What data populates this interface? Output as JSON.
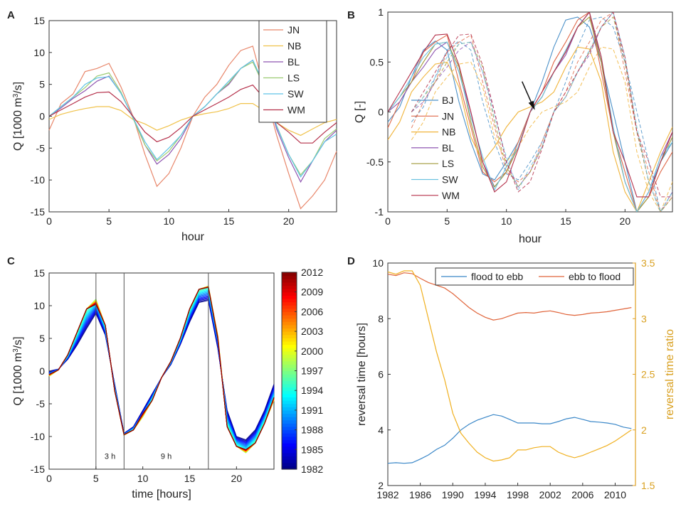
{
  "chart_data": [
    {
      "panel": "A",
      "type": "line",
      "title": "",
      "xlabel": "hour",
      "ylabel": "Q [1000 m³/s]",
      "ylabel_parts": [
        "Q [1000 m",
        "3",
        "/s]"
      ],
      "xlim": [
        0,
        24
      ],
      "ylim": [
        -15,
        15
      ],
      "xticks": [
        0,
        5,
        10,
        15,
        20
      ],
      "yticks": [
        -15,
        -10,
        -5,
        0,
        5,
        10,
        15
      ],
      "legend_position": "top-right",
      "x": [
        0,
        1,
        2,
        3,
        4,
        5,
        6,
        7,
        8,
        9,
        10,
        11,
        12,
        13,
        14,
        15,
        16,
        17,
        18,
        19,
        20,
        21,
        22,
        23,
        24
      ],
      "series": [
        {
          "name": "JN",
          "color": "#e8866a",
          "values": [
            -2.2,
            2,
            3.5,
            7,
            7.5,
            8.3,
            4.6,
            0,
            -6,
            -11,
            -9,
            -5,
            0,
            3,
            5,
            8,
            10.3,
            11,
            4,
            -3,
            -9,
            -14.5,
            -12.5,
            -10,
            -5.5
          ]
        },
        {
          "name": "NB",
          "color": "#f0c24a",
          "values": [
            -0.5,
            0.3,
            0.8,
            1.2,
            1.5,
            1.5,
            0.9,
            -0.5,
            -1.2,
            -2.2,
            -1.5,
            -0.6,
            0,
            0.4,
            0.7,
            1.2,
            2,
            2,
            0.8,
            -1,
            -2.2,
            -3,
            -2,
            -1,
            -0.5
          ]
        },
        {
          "name": "BL",
          "color": "#8e55b0",
          "values": [
            0,
            1.3,
            2.8,
            4,
            5.5,
            6.3,
            3.6,
            -0.1,
            -4.5,
            -7.5,
            -6,
            -3.5,
            0,
            1.5,
            3.5,
            5,
            7.5,
            8.8,
            4.5,
            -2,
            -6.5,
            -10.3,
            -7,
            -4,
            -2.2
          ]
        },
        {
          "name": "LS",
          "color": "#9bcb72",
          "values": [
            0,
            1.5,
            3,
            4.5,
            6.3,
            6.8,
            3.8,
            -0.3,
            -4.5,
            -7,
            -5.5,
            -3,
            0,
            1.5,
            3.5,
            5.2,
            7.5,
            8.5,
            4.5,
            -1.5,
            -6,
            -9.2,
            -7,
            -3.5,
            -2
          ]
        },
        {
          "name": "SW",
          "color": "#5dc3e6",
          "values": [
            0,
            1.5,
            3,
            5,
            6,
            6.2,
            3.6,
            -0.2,
            -4,
            -6.8,
            -5,
            -3,
            0,
            1.5,
            3.5,
            5.5,
            7.5,
            8.8,
            4.8,
            -1.6,
            -6,
            -9.5,
            -7,
            -4,
            -2.8
          ]
        },
        {
          "name": "WM",
          "color": "#b5304a",
          "values": [
            0,
            1,
            2,
            3,
            3.7,
            3.8,
            2.3,
            0,
            -2.5,
            -4,
            -3.3,
            -1.8,
            0,
            1,
            2,
            3,
            4.2,
            4.9,
            2.7,
            -1,
            -2.5,
            -4.2,
            -4.2,
            -2.5,
            -1
          ]
        }
      ]
    },
    {
      "panel": "B",
      "type": "line",
      "title": "",
      "xlabel": "hour",
      "ylabel": "Q [-]",
      "xlim": [
        0,
        24
      ],
      "ylim": [
        -1,
        1
      ],
      "xticks": [
        0,
        5,
        10,
        15,
        20
      ],
      "yticks": [
        -1,
        -0.5,
        0,
        0.5,
        1
      ],
      "yticklabels": [
        "-1",
        "-0.5",
        "0",
        "0.5",
        "1"
      ],
      "legend_position": "bottom-left",
      "annotation": "arrow pointing at the crossing of all curves near hour 12.5",
      "x": [
        0,
        1,
        2,
        3,
        4,
        5,
        6,
        7,
        8,
        9,
        10,
        11,
        12,
        13,
        14,
        15,
        16,
        17,
        18,
        19,
        20,
        21,
        22,
        23,
        24
      ],
      "series": [
        {
          "name": "BJ",
          "color": "#4a90c8",
          "values": [
            -0.1,
            0.05,
            0.35,
            0.62,
            0.71,
            0.62,
            0.1,
            -0.3,
            -0.62,
            -0.68,
            -0.5,
            -0.3,
            0,
            0.3,
            0.65,
            0.92,
            0.95,
            0.85,
            0.5,
            0,
            -0.5,
            -1,
            -0.8,
            -0.5,
            -0.3
          ]
        },
        {
          "name": "JN",
          "color": "#e06a4a",
          "values": [
            -0.16,
            0.1,
            0.3,
            0.6,
            0.7,
            0.77,
            0.3,
            -0.15,
            -0.6,
            -0.7,
            -0.6,
            -0.3,
            0,
            0.2,
            0.5,
            0.7,
            0.92,
            1,
            0.4,
            -0.2,
            -0.6,
            -1,
            -0.85,
            -0.6,
            -0.4
          ]
        },
        {
          "name": "NB",
          "color": "#f0b43a",
          "values": [
            -0.28,
            -0.1,
            0.2,
            0.35,
            0.48,
            0.5,
            0.25,
            -0.25,
            -0.5,
            -0.35,
            -0.15,
            0,
            0.05,
            0.1,
            0.2,
            0.45,
            0.65,
            0.63,
            0.3,
            -0.4,
            -0.8,
            -1,
            -0.7,
            -0.4,
            -0.15
          ]
        },
        {
          "name": "BL",
          "color": "#8e55b0",
          "values": [
            0,
            0.1,
            0.3,
            0.45,
            0.62,
            0.7,
            0.4,
            0,
            -0.5,
            -0.75,
            -0.6,
            -0.35,
            0,
            0.15,
            0.4,
            0.57,
            0.85,
            1,
            0.5,
            -0.2,
            -0.7,
            -1,
            -0.8,
            -0.45,
            -0.2
          ]
        },
        {
          "name": "LS",
          "color": "#a09a3a",
          "values": [
            0,
            0.15,
            0.3,
            0.5,
            0.68,
            0.7,
            0.45,
            -0.1,
            -0.55,
            -0.75,
            -0.6,
            -0.35,
            0,
            0.15,
            0.4,
            0.6,
            0.85,
            0.95,
            0.5,
            -0.2,
            -0.7,
            -1,
            -0.85,
            -0.5,
            -0.25
          ]
        },
        {
          "name": "SW",
          "color": "#6ec3e0",
          "values": [
            0,
            0.15,
            0.35,
            0.55,
            0.68,
            0.7,
            0.4,
            -0.05,
            -0.45,
            -0.78,
            -0.55,
            -0.35,
            0,
            0.15,
            0.4,
            0.62,
            0.85,
            1,
            0.55,
            -0.15,
            -0.7,
            -1,
            -0.8,
            -0.45,
            -0.3
          ]
        },
        {
          "name": "WM",
          "color": "#b5304a",
          "values": [
            0,
            0.2,
            0.4,
            0.6,
            0.77,
            0.78,
            0.47,
            0,
            -0.5,
            -0.8,
            -0.7,
            -0.37,
            0,
            0.2,
            0.4,
            0.6,
            0.85,
            1,
            0.55,
            -0.2,
            -0.5,
            -0.85,
            -0.85,
            -0.5,
            -0.2
          ]
        }
      ],
      "dashed_series_note": "dashed copies of each series shifted by about 2 hours",
      "dashed_shift_hours": 2
    },
    {
      "panel": "C",
      "type": "line",
      "title": "",
      "xlabel": "time [hours]",
      "ylabel": "Q [1000 m³/s]",
      "ylabel_parts": [
        "Q [1000 m",
        "3",
        "/s]"
      ],
      "xlim": [
        0,
        24
      ],
      "ylim": [
        -15,
        15
      ],
      "xticks": [
        0,
        5,
        10,
        15,
        20
      ],
      "yticks": [
        -15,
        -10,
        -5,
        0,
        5,
        10,
        15
      ],
      "vertical_lines": [
        5,
        8,
        17
      ],
      "annotations": [
        {
          "text": "3 h",
          "x": 6.5,
          "y": -13
        },
        {
          "text": "9 h",
          "x": 12.5,
          "y": -13
        }
      ],
      "colorbar": {
        "min": 1982,
        "max": 2012,
        "ticks": [
          1982,
          1985,
          1988,
          1991,
          1994,
          1997,
          2000,
          2003,
          2006,
          2009,
          2012
        ]
      },
      "x": [
        0,
        1,
        2,
        3,
        4,
        5,
        6,
        7,
        8,
        9,
        10,
        11,
        12,
        13,
        14,
        15,
        16,
        17,
        18,
        19,
        20,
        21,
        22,
        23,
        24
      ],
      "series": [
        {
          "name": "1982",
          "values": [
            0,
            0.3,
            1.8,
            4,
            6.5,
            8.8,
            5.5,
            -2,
            -9.5,
            -8.5,
            -6,
            -3.5,
            -1,
            1,
            4,
            7.5,
            10.5,
            10.8,
            3.5,
            -6,
            -10,
            -10.5,
            -9,
            -6,
            -2
          ]
        },
        {
          "name": "1997",
          "values": [
            -0.8,
            0.2,
            2.5,
            6,
            9.5,
            11,
            7,
            -3,
            -9.8,
            -9,
            -7,
            -4.5,
            -1,
            1.5,
            5,
            9.5,
            12.5,
            13,
            5.5,
            -8.5,
            -11.5,
            -12.5,
            -11,
            -8,
            -4.5
          ]
        },
        {
          "name": "2012",
          "values": [
            -0.5,
            0.2,
            2.5,
            6,
            9.5,
            10.2,
            7,
            -3,
            -9.7,
            -9,
            -6.5,
            -4.5,
            -1,
            1.5,
            5,
            9.5,
            12.5,
            12.8,
            5,
            -8.5,
            -11.5,
            -12,
            -11,
            -8,
            -4
          ]
        }
      ]
    },
    {
      "panel": "D",
      "type": "line",
      "title": "",
      "xlabel": "",
      "ylabel": "reversal time [hours]",
      "y2label": "reversal time ratio",
      "xlim": [
        1982,
        2012.5
      ],
      "ylim": [
        2,
        10
      ],
      "y2lim": [
        1.5,
        3.5
      ],
      "xticks": [
        1982,
        1986,
        1990,
        1994,
        1998,
        2002,
        2006,
        2010
      ],
      "yticks": [
        2,
        4,
        6,
        8,
        10
      ],
      "y2ticks": [
        1.5,
        2,
        2.5,
        3,
        3.5
      ],
      "legend_position": "top-right",
      "x": [
        1982,
        1983,
        1984,
        1985,
        1986,
        1987,
        1988,
        1989,
        1990,
        1991,
        1992,
        1993,
        1994,
        1995,
        1996,
        1997,
        1998,
        1999,
        2000,
        2001,
        2002,
        2003,
        2004,
        2005,
        2006,
        2007,
        2008,
        2009,
        2010,
        2011,
        2012
      ],
      "series": [
        {
          "name": "flood to ebb",
          "color": "#3a87c8",
          "axis": "left",
          "values": [
            2.8,
            2.82,
            2.8,
            2.82,
            2.95,
            3.1,
            3.3,
            3.45,
            3.7,
            4.0,
            4.2,
            4.35,
            4.45,
            4.55,
            4.5,
            4.38,
            4.25,
            4.25,
            4.25,
            4.22,
            4.22,
            4.3,
            4.4,
            4.45,
            4.38,
            4.3,
            4.28,
            4.25,
            4.2,
            4.1,
            4.05
          ]
        },
        {
          "name": "ebb to flood",
          "color": "#e0643a",
          "axis": "left",
          "values": [
            9.6,
            9.55,
            9.65,
            9.62,
            9.45,
            9.3,
            9.2,
            9.1,
            8.9,
            8.65,
            8.4,
            8.2,
            8.05,
            7.95,
            8.0,
            8.1,
            8.2,
            8.22,
            8.2,
            8.25,
            8.28,
            8.22,
            8.15,
            8.12,
            8.15,
            8.2,
            8.22,
            8.25,
            8.3,
            8.35,
            8.4
          ]
        },
        {
          "name": "ratio",
          "color": "#f0b020",
          "axis": "right",
          "values": [
            3.42,
            3.4,
            3.43,
            3.43,
            3.3,
            3.0,
            2.7,
            2.45,
            2.15,
            1.97,
            1.88,
            1.8,
            1.75,
            1.72,
            1.73,
            1.75,
            1.82,
            1.82,
            1.84,
            1.85,
            1.85,
            1.8,
            1.77,
            1.75,
            1.77,
            1.8,
            1.83,
            1.86,
            1.9,
            1.95,
            2.0
          ]
        }
      ]
    }
  ]
}
